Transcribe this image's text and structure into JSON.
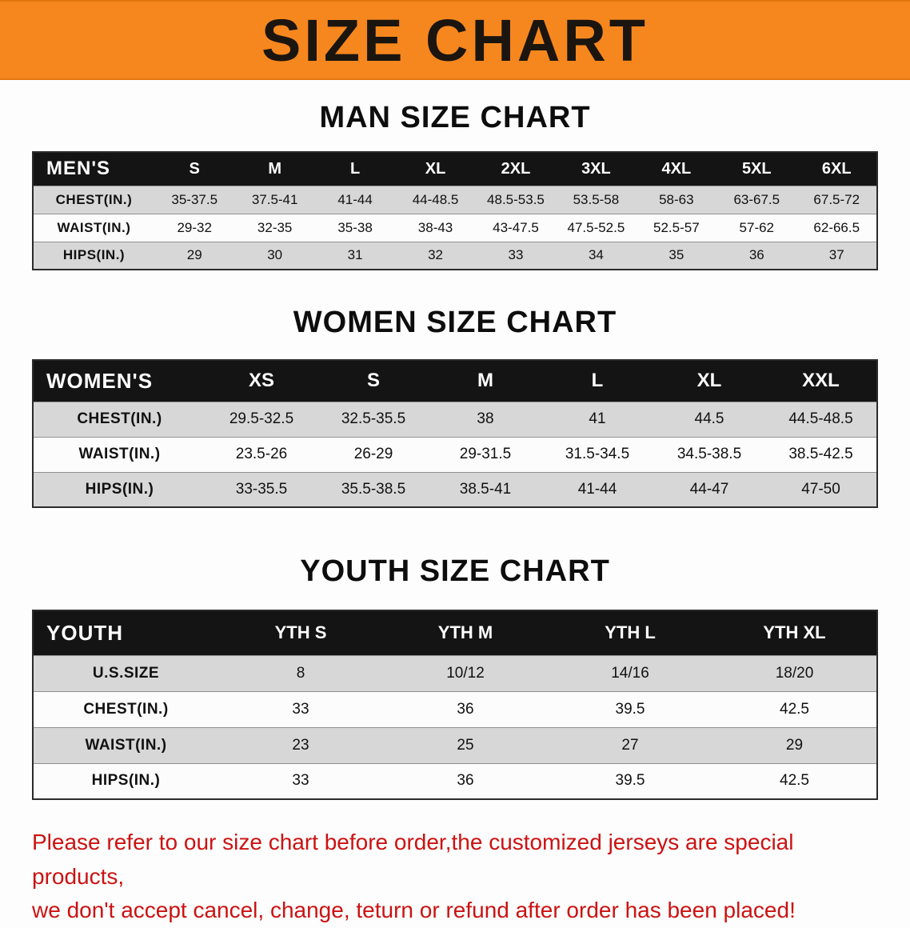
{
  "banner": {
    "title": "SIZE CHART"
  },
  "chart_data": [
    {
      "type": "table",
      "title": "MAN SIZE CHART",
      "corner_label": "MEN'S",
      "columns": [
        "S",
        "M",
        "L",
        "XL",
        "2XL",
        "3XL",
        "4XL",
        "5XL",
        "6XL"
      ],
      "rows": [
        {
          "label": "CHEST(IN.)",
          "values": [
            "35-37.5",
            "37.5-41",
            "41-44",
            "44-48.5",
            "48.5-53.5",
            "53.5-58",
            "58-63",
            "63-67.5",
            "67.5-72"
          ]
        },
        {
          "label": "WAIST(IN.)",
          "values": [
            "29-32",
            "32-35",
            "35-38",
            "38-43",
            "43-47.5",
            "47.5-52.5",
            "52.5-57",
            "57-62",
            "62-66.5"
          ]
        },
        {
          "label": "HIPS(IN.)",
          "values": [
            "29",
            "30",
            "31",
            "32",
            "33",
            "34",
            "35",
            "36",
            "37"
          ]
        }
      ]
    },
    {
      "type": "table",
      "title": "WOMEN SIZE CHART",
      "corner_label": "WOMEN'S",
      "columns": [
        "XS",
        "S",
        "M",
        "L",
        "XL",
        "XXL"
      ],
      "rows": [
        {
          "label": "CHEST(IN.)",
          "values": [
            "29.5-32.5",
            "32.5-35.5",
            "38",
            "41",
            "44.5",
            "44.5-48.5"
          ]
        },
        {
          "label": "WAIST(IN.)",
          "values": [
            "23.5-26",
            "26-29",
            "29-31.5",
            "31.5-34.5",
            "34.5-38.5",
            "38.5-42.5"
          ]
        },
        {
          "label": "HIPS(IN.)",
          "values": [
            "33-35.5",
            "35.5-38.5",
            "38.5-41",
            "41-44",
            "44-47",
            "47-50"
          ]
        }
      ]
    },
    {
      "type": "table",
      "title": "YOUTH SIZE CHART",
      "corner_label": "YOUTH",
      "columns": [
        "YTH S",
        "YTH M",
        "YTH L",
        "YTH XL"
      ],
      "rows": [
        {
          "label": "U.S.SIZE",
          "values": [
            "8",
            "10/12",
            "14/16",
            "18/20"
          ]
        },
        {
          "label": "CHEST(IN.)",
          "values": [
            "33",
            "36",
            "39.5",
            "42.5"
          ]
        },
        {
          "label": "WAIST(IN.)",
          "values": [
            "23",
            "25",
            "27",
            "29"
          ]
        },
        {
          "label": "HIPS(IN.)",
          "values": [
            "33",
            "36",
            "39.5",
            "42.5"
          ]
        }
      ]
    }
  ],
  "footer": {
    "line1": "Please refer to our size chart before order,the customized jerseys are special products,",
    "line2": "we don't accept cancel, change, teturn or refund after order has been placed!"
  },
  "colors": {
    "banner_orange": "#f6871e",
    "table_header_black": "#141414",
    "row_shaded_gray": "#d7d7d7",
    "note_red": "#cc1212"
  }
}
